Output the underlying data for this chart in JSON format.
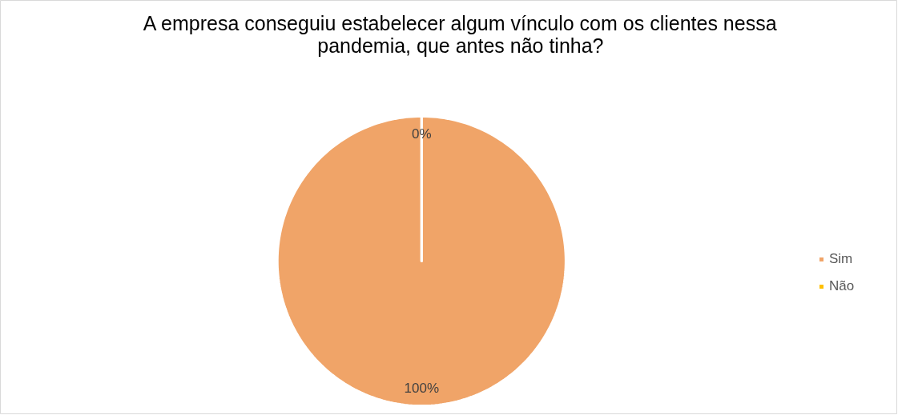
{
  "chart_data": {
    "type": "pie",
    "title": "A empresa conseguiu estabelecer algum vínculo com os clientes nessa pandemia, que antes não tinha?",
    "categories": [
      "Sim",
      "Não"
    ],
    "values": [
      100,
      0
    ],
    "colors": [
      "#f0a468",
      "#ffc000"
    ],
    "value_labels": [
      "100%",
      "0%"
    ],
    "legend": "right"
  }
}
